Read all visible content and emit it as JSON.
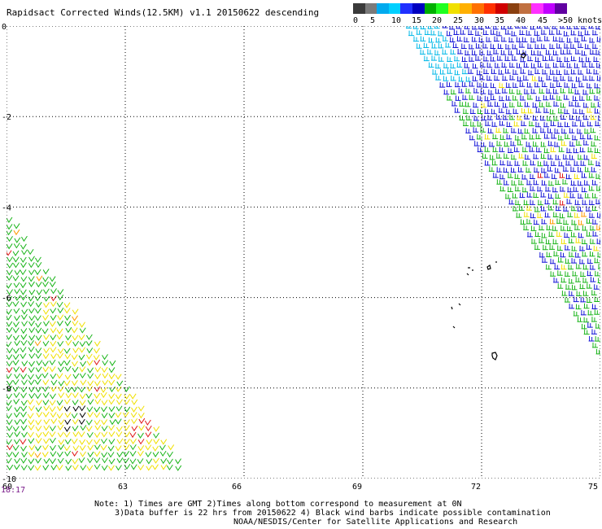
{
  "title": "Rapidsact Corrected Winds(12.5KM) v1.1 20150622 descending",
  "legend": {
    "colors": [
      "#3a3a3a",
      "#7a7a7a",
      "#00aaee",
      "#00d0ff",
      "#2030ff",
      "#0000c0",
      "#00b000",
      "#20ff20",
      "#f0e000",
      "#ffb000",
      "#ff7000",
      "#ff3000",
      "#d00000",
      "#8a4010",
      "#c07040",
      "#ff30ff",
      "#c000ff",
      "#6000a0"
    ],
    "ticks": [
      "0",
      "5",
      "10",
      "15",
      "20",
      "25",
      "30",
      "35",
      "40",
      "45",
      ">50 knots"
    ]
  },
  "axes": {
    "x_labels": [
      "60",
      "63",
      "66",
      "69",
      "72",
      "75"
    ],
    "y_labels": [
      "0",
      "-2",
      "-4",
      "-6",
      "-8",
      "-10"
    ]
  },
  "time_label": "18:17",
  "notes": [
    "Note: 1) Times are GMT 2)Times along bottom correspond to measurement at 0N",
    "3)Data buffer is 22 hrs from 20150622 4) Black wind barbs indicate possible contamination",
    "NOAA/NESDIS/Center for Satellite Applications and Research"
  ],
  "swath_colors": {
    "blue": "#1414d8",
    "cyan": "#00b8e8",
    "green": "#18b418",
    "yellow": "#f0e000",
    "orange": "#ff9a00",
    "red": "#e01818",
    "black": "#000000"
  },
  "islands_color": "#000000"
}
